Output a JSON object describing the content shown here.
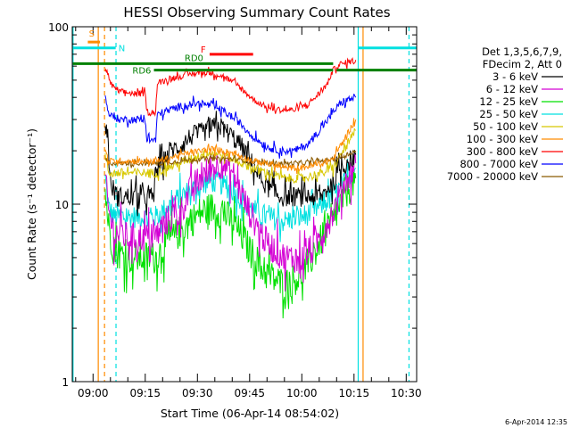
{
  "chart_data": {
    "type": "line",
    "title": "HESSI Observing Summary Count Rates",
    "xlabel": "Start Time (06-Apr-14 08:54:02)",
    "ylabel": "Count Rate (s⁻¹ detector⁻¹)",
    "x_unit": "minutes of day",
    "xlim": [
      534.03,
      633.0
    ],
    "ylim": [
      1,
      100
    ],
    "yscale": "log",
    "x_ticks": [
      {
        "value": 540,
        "label": "09:00"
      },
      {
        "value": 555,
        "label": "09:15"
      },
      {
        "value": 570,
        "label": "09:30"
      },
      {
        "value": 585,
        "label": "09:45"
      },
      {
        "value": 600,
        "label": "10:00"
      },
      {
        "value": 615,
        "label": "10:15"
      },
      {
        "value": 630,
        "label": "10:30"
      }
    ],
    "y_ticks": [
      {
        "value": 1,
        "label": "1"
      },
      {
        "value": 10,
        "label": "10"
      },
      {
        "value": 100,
        "label": "100"
      }
    ],
    "legend_header": [
      "Det 1,3,5,6,7,9,",
      "FDecim 2, Att 0"
    ],
    "series": [
      {
        "name": "3 - 6 keV",
        "color": "#000000",
        "x": [
          543.5,
          544.2,
          545,
          547,
          550,
          552,
          555,
          557.5,
          558,
          560,
          562,
          565,
          568,
          570,
          573,
          576,
          579,
          582,
          585,
          588,
          591,
          594,
          597,
          600,
          603,
          605.5,
          607,
          608.5,
          609.8,
          611,
          613,
          615.5
        ],
        "y": [
          30,
          25,
          13,
          11,
          11,
          11,
          11,
          11,
          16,
          17,
          20,
          21,
          24,
          25,
          26,
          28,
          25,
          22,
          18,
          14,
          12,
          11,
          11,
          11,
          11,
          11,
          12,
          13,
          14,
          16,
          17,
          19
        ]
      },
      {
        "name": "6 - 12 keV",
        "color": "#d400d4",
        "x": [
          543.5,
          544.5,
          546,
          550,
          555,
          558,
          561,
          565,
          568,
          571,
          574,
          577,
          580,
          583,
          585,
          590,
          595,
          600,
          603,
          606,
          609,
          612,
          615.5
        ],
        "y": [
          14,
          9,
          7,
          6.5,
          6.5,
          6.5,
          8,
          9,
          12,
          14,
          16,
          17,
          15,
          11,
          9,
          6,
          5,
          5,
          5.5,
          7,
          9,
          13,
          17
        ]
      },
      {
        "name": "12 - 25 keV",
        "color": "#00e000",
        "x": [
          543.5,
          544.5,
          546,
          550,
          555,
          558,
          561,
          565,
          568,
          571,
          574,
          577,
          580,
          583,
          585,
          590,
          595,
          600,
          603,
          606,
          609,
          612,
          615.5
        ],
        "y": [
          12,
          7.5,
          5.5,
          5,
          5,
          5,
          6,
          7,
          8,
          9,
          9.5,
          9,
          8,
          6.5,
          5.5,
          4,
          3.5,
          4,
          5,
          6.5,
          8,
          11,
          14
        ]
      },
      {
        "name": "25 - 50 keV",
        "color": "#00e0e0",
        "x": [
          543.5,
          544.5,
          546,
          550,
          555,
          558,
          561,
          565,
          568,
          571,
          574,
          577,
          580,
          583,
          585,
          590,
          595,
          600,
          603,
          606,
          609,
          612,
          615.5
        ],
        "y": [
          14,
          9.5,
          8.5,
          8.5,
          8.5,
          8.5,
          9.5,
          11,
          12,
          13,
          13.5,
          13,
          12,
          10.5,
          9.5,
          8.5,
          8,
          8.5,
          9,
          10,
          11,
          13,
          16
        ]
      },
      {
        "name": "50 - 100 keV",
        "color": "#d8c800",
        "x": [
          543.5,
          544.5,
          546,
          550,
          555,
          558,
          561,
          565,
          568,
          571,
          574,
          577,
          580,
          583,
          586,
          590,
          595,
          600,
          603,
          606,
          609,
          612,
          615.5
        ],
        "y": [
          19,
          15,
          15,
          15,
          15,
          15,
          16,
          17,
          18,
          19,
          19.5,
          19,
          18,
          17,
          16,
          15,
          14,
          14,
          14.5,
          15,
          16,
          20,
          26
        ]
      },
      {
        "name": "100 - 300 keV",
        "color": "#ff8c00",
        "x": [
          543.5,
          544.5,
          546,
          550,
          555,
          558,
          561,
          565,
          568,
          571,
          574,
          577,
          580,
          583,
          586,
          590,
          595,
          600,
          603,
          606,
          609,
          612,
          615.5
        ],
        "y": [
          20,
          17.5,
          17.5,
          17.5,
          17.5,
          17.5,
          18,
          19,
          19.5,
          20,
          20.5,
          20,
          19.5,
          18.5,
          17.5,
          17,
          16,
          16,
          16.5,
          17,
          18,
          23,
          30
        ]
      },
      {
        "name": "300 - 800 keV",
        "color": "#ff0000",
        "x": [
          543.5,
          544.2,
          545.5,
          548,
          552,
          555,
          555.5,
          558,
          558.5,
          562,
          566,
          570,
          574,
          578,
          582,
          586,
          590,
          594,
          598,
          602,
          605,
          607.5,
          608.5,
          610,
          612,
          615.5
        ],
        "y": [
          60,
          54,
          46,
          43,
          42,
          42,
          33,
          33,
          48,
          51,
          53,
          55,
          55,
          52,
          46,
          39,
          35,
          34,
          34,
          37,
          42,
          48,
          55,
          60,
          62,
          65
        ]
      },
      {
        "name": "800 - 7000 keV",
        "color": "#0000ff",
        "x": [
          543.5,
          544.2,
          545.5,
          548,
          552,
          555,
          555.5,
          558,
          558.5,
          562,
          566,
          570,
          574,
          578,
          582,
          586,
          590,
          594,
          598,
          602,
          605,
          607.5,
          609,
          610.5,
          612,
          615.5
        ],
        "y": [
          40,
          34,
          31,
          30,
          30,
          30,
          23,
          23,
          32,
          34,
          36,
          37,
          36,
          33,
          29,
          24,
          21,
          20,
          20,
          22,
          26,
          30,
          33,
          36,
          38,
          40
        ]
      },
      {
        "name": "7000 - 20000 keV",
        "color": "#8b5a00",
        "x": [
          543.5,
          545,
          550,
          555,
          560,
          570,
          580,
          590,
          600,
          610,
          615.5
        ],
        "y": [
          18,
          17,
          17,
          17,
          17,
          18,
          18,
          17,
          17,
          18,
          20
        ]
      }
    ],
    "markers": [
      {
        "label": "S",
        "color": "#ff8c00",
        "x": [
          538.5,
          542
        ],
        "y": 82
      },
      {
        "label": "N",
        "color": "#00e0e0",
        "x_segments": [
          [
            534.2,
            546.5
          ],
          [
            616.3,
            633
          ]
        ],
        "y": 76
      },
      {
        "label": "F",
        "color": "#ff0000",
        "x": [
          573.5,
          586
        ],
        "y": 70
      },
      {
        "label": "RD0",
        "color": "#008000",
        "x": [
          534.2,
          609
        ],
        "y": 62
      },
      {
        "label": "RD6",
        "color": "#008000",
        "x_segments": [
          [
            557.5,
            609
          ],
          [
            610,
            633
          ]
        ],
        "y": 57
      }
    ],
    "vlines": [
      {
        "x": 541.5,
        "color": "#ff8c00",
        "style": "solid"
      },
      {
        "x": 543.3,
        "color": "#ff8c00",
        "style": "dashed"
      },
      {
        "x": 546.6,
        "color": "#00e0e0",
        "style": "dashed"
      },
      {
        "x": 616.2,
        "color": "#00e0e0",
        "style": "solid"
      },
      {
        "x": 617.6,
        "color": "#ff8c00",
        "style": "solid"
      },
      {
        "x": 630.8,
        "color": "#00e0e0",
        "style": "dashed"
      },
      {
        "x": 534.25,
        "color": "#00e0e0",
        "style": "solid"
      }
    ],
    "footer_date": "6-Apr-2014 12:35"
  }
}
